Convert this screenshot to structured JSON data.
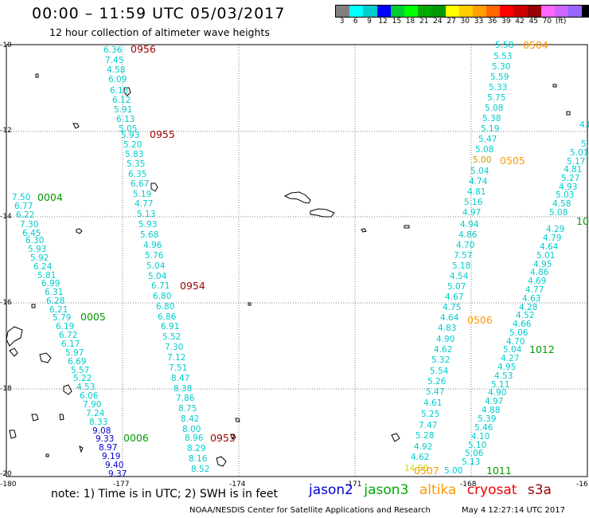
{
  "title": "00:00 – 11:59 UTC 05/03/2017",
  "subtitle": "12 hour collection of altimeter wave heights",
  "legend": {
    "colors": [
      "#808080",
      "#00ffff",
      "#00cccc",
      "#0000ff",
      "#00cc33",
      "#00ff00",
      "#00aa00",
      "#009900",
      "#ffff00",
      "#ffcc00",
      "#ffa000",
      "#ff6600",
      "#ff0000",
      "#cc0000",
      "#990000",
      "#ff66ff",
      "#cc66ff",
      "#9966ff",
      "#000000"
    ],
    "ticks": [
      "3",
      "6",
      "9",
      "12",
      "15",
      "18",
      "21",
      "24",
      "27",
      "30",
      "33",
      "36",
      "39",
      "42",
      "45",
      "70",
      "(ft)"
    ]
  },
  "axes": {
    "lat_labels": [
      "-10",
      "-12",
      "-14",
      "-16",
      "-18",
      "-20"
    ],
    "lon_labels": [
      "-180",
      "-177",
      "-174",
      "-171",
      "-168",
      "-16"
    ]
  },
  "tracks": [
    {
      "id": "t1",
      "points": [
        "6.36",
        "7.45",
        "4.58",
        "6.09",
        "6.13",
        "6.12",
        "5.91",
        "6.13",
        "5.05",
        "5.93",
        "5.20",
        "5.83",
        "5.35",
        "6.35",
        "6.67",
        "5.19",
        "4.77",
        "5.13",
        "5.93",
        "5.68",
        "4.96",
        "5.76",
        "5.04",
        "5.04",
        "6.71",
        "6.80",
        "6.80",
        "6.86",
        "6.91",
        "5.52",
        "7.30",
        "7.12",
        "7.51",
        "8.47",
        "8.38",
        "7.86",
        "8.75",
        "8.42",
        "8.00",
        "8.96",
        "8.29",
        "8.16",
        "8.52"
      ]
    },
    {
      "id": "t2",
      "points": [
        "7.50",
        "6.77",
        "6.22",
        "7.30",
        "6.45",
        "6.30",
        "5.93",
        "5.92",
        "6.24",
        "5.81",
        "6.99",
        "6.31",
        "6.28",
        "6.21",
        "5.79",
        "6.19",
        "6.72",
        "6.17",
        "5.97",
        "6.69",
        "5.57",
        "5.22",
        "4.53",
        "6.06",
        "7.90",
        "7.24",
        "8.33",
        "9.08",
        "9.33",
        "8.97",
        "9.19",
        "9.40",
        "9.37"
      ]
    },
    {
      "id": "t3",
      "points": [
        "5.58",
        "5.53",
        "5.30",
        "5.59",
        "5.33",
        "5.75",
        "5.08",
        "5.38",
        "5.19",
        "5.47",
        "5.08",
        "5.00",
        "5.04",
        "4.74",
        "4.81",
        "5.16",
        "4.97",
        "4.94",
        "4.86",
        "4.70",
        "7.57",
        "5.18",
        "4.54",
        "5.07",
        "4.67",
        "4.75",
        "4.64",
        "4.83",
        "4.90",
        "4.62",
        "5.32",
        "5.54",
        "5.26",
        "5.47",
        "4.61",
        "5.25",
        "7.47",
        "5.28",
        "4.92",
        "4.62",
        "14.50"
      ]
    },
    {
      "id": "t4",
      "points": [
        "4.8",
        "5.8",
        "5.01",
        "5.17",
        "4.81",
        "5.27",
        "4.93",
        "5.03",
        "4.58",
        "5.08",
        "4.29",
        "4.79",
        "4.64",
        "5.01",
        "4.95",
        "4.86",
        "4.69",
        "4.77",
        "4.63",
        "4.28",
        "4.52",
        "4.66",
        "5.06",
        "4.70",
        "5.04",
        "4.27",
        "4.95",
        "4.53",
        "5.11",
        "4.90",
        "4.97",
        "4.88",
        "5.39",
        "5.46",
        "4.10",
        "5.10",
        "5.06",
        "5.13",
        "5.00"
      ]
    }
  ],
  "time_labels": [
    "0956",
    "0955",
    "0954",
    "0953",
    "0004",
    "0005",
    "0006",
    "0504",
    "0505",
    "0506",
    "0507",
    "1012",
    "1011",
    "10"
  ],
  "note": "note: 1) Time is in UTC; 2) SWH is in feet",
  "satellites": [
    {
      "name": "jason2",
      "color": "#0000dd"
    },
    {
      "name": "jason3",
      "color": "#00aa00"
    },
    {
      "name": "altika",
      "color": "#ff9900"
    },
    {
      "name": "cryosat",
      "color": "#ee0000"
    },
    {
      "name": "s3a",
      "color": "#990000"
    }
  ],
  "credit": "NOAA/NESDIS Center for Satellite Applications and Research",
  "timestamp": "May  4 12:27:14 UTC 2017"
}
